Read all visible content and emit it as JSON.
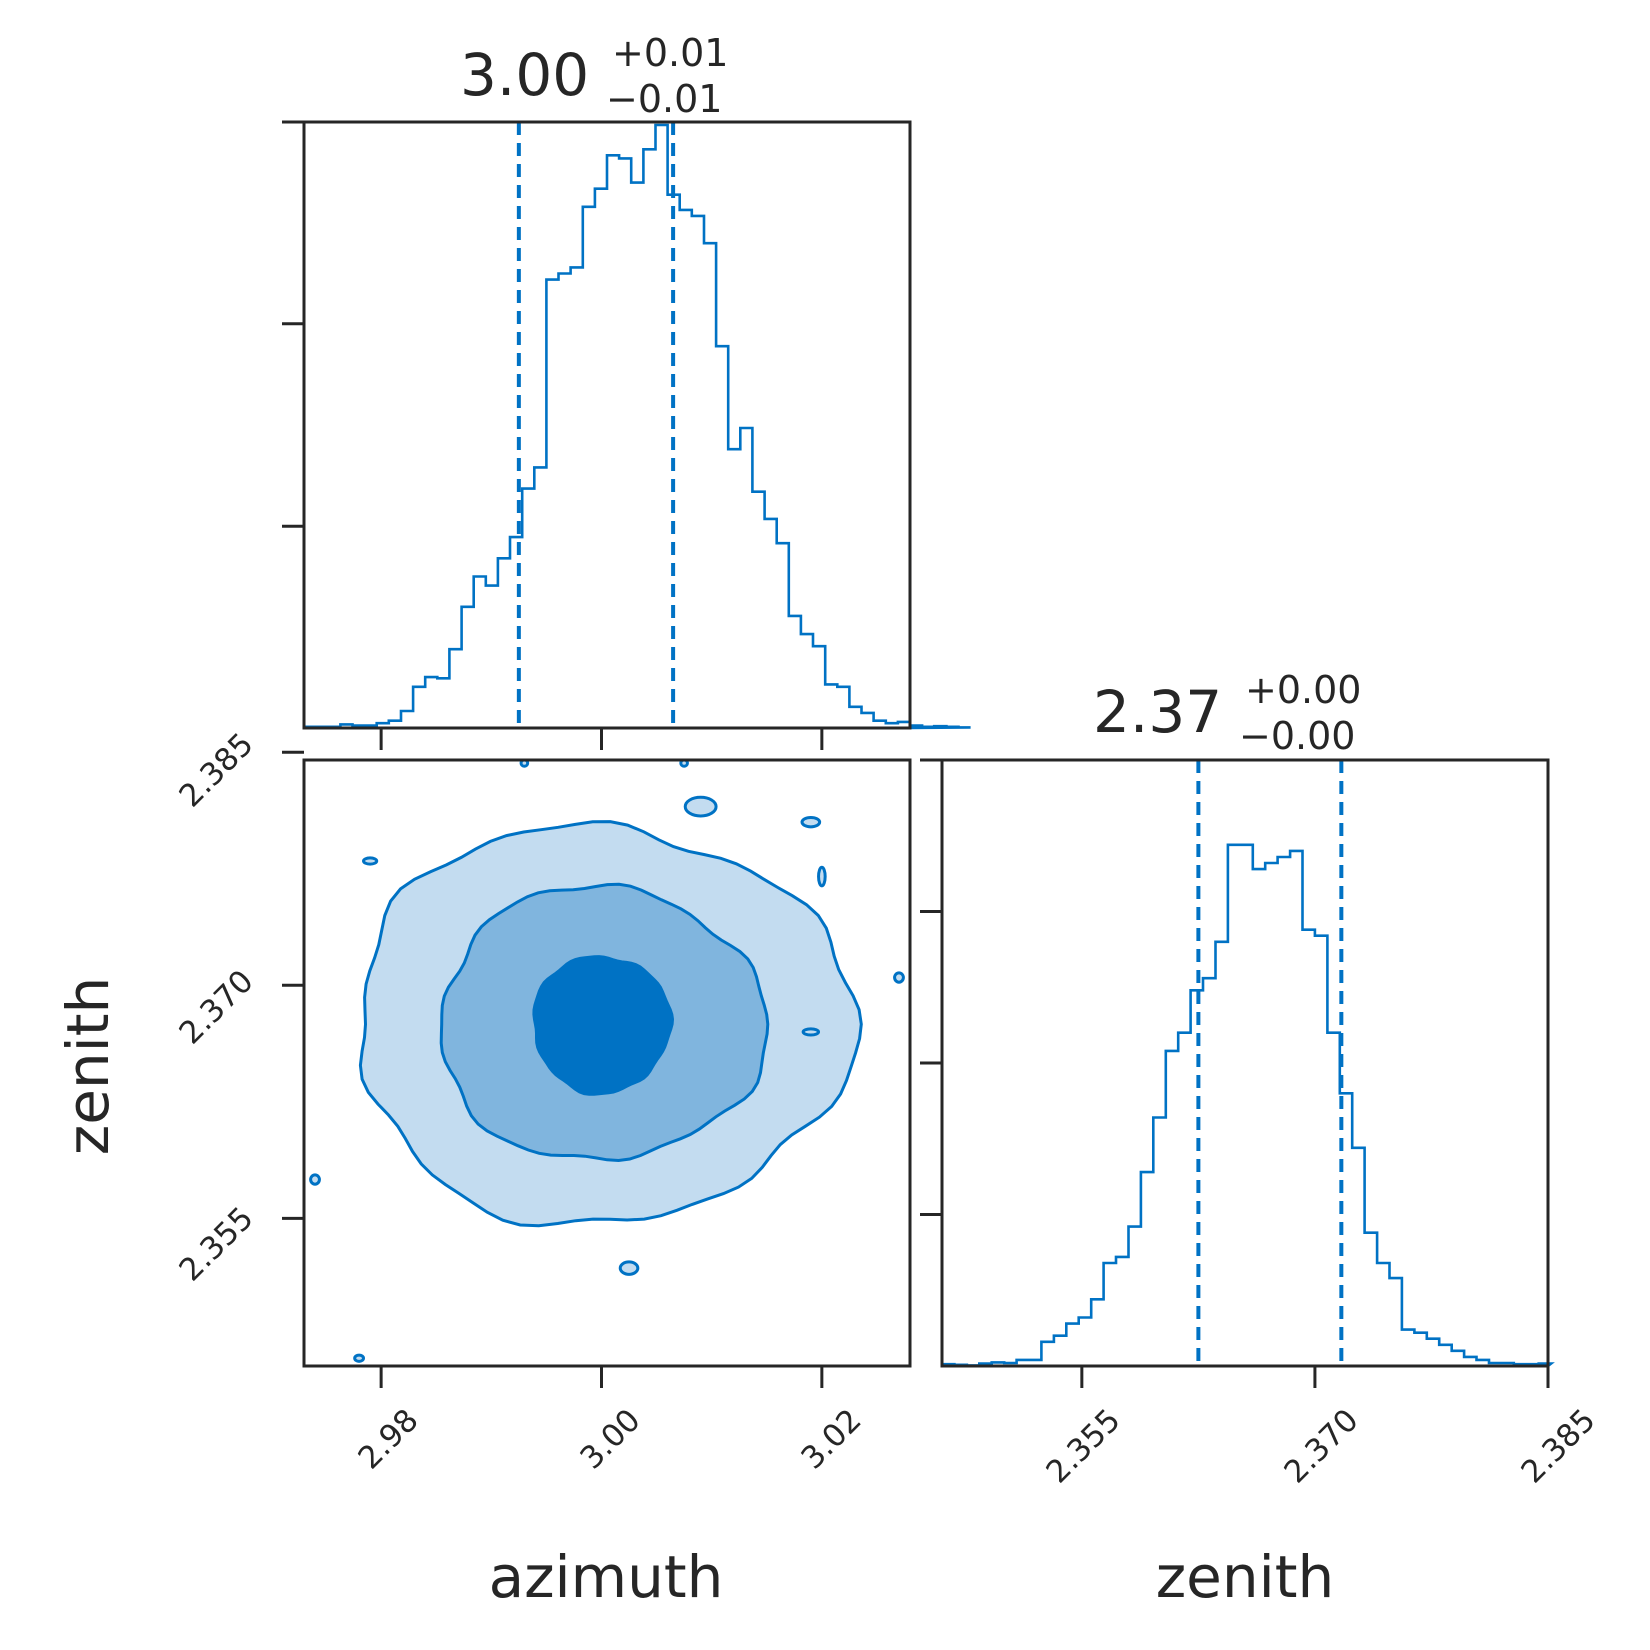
{
  "colors": {
    "main": "#0072c4",
    "band1": "#c3dcf0",
    "band2": "#80b5de",
    "band3": "#0072c4",
    "frame": "#262626"
  },
  "chart_data": [
    {
      "type": "histogram",
      "parameter": "azimuth",
      "title": {
        "value": "3.00",
        "plus": "+0.01",
        "minus": "−0.01"
      },
      "xlim": [
        2.973,
        3.028
      ],
      "ylim": [
        0,
        1
      ],
      "x_ticks": [
        2.98,
        3.0,
        3.02
      ],
      "x_tick_labels": [
        "2.98",
        "3.00",
        "3.02"
      ],
      "y_ticks": [
        0.333,
        0.667,
        1.0
      ],
      "quantile_lines": [
        2.9925,
        3.0065
      ],
      "bin_edges_start": 2.973,
      "bin_width": 0.0011,
      "counts": [
        0.002,
        0.002,
        0.002,
        0.006,
        0.004,
        0.004,
        0.008,
        0.012,
        0.028,
        0.068,
        0.084,
        0.082,
        0.13,
        0.2,
        0.25,
        0.235,
        0.28,
        0.315,
        0.395,
        0.43,
        0.74,
        0.75,
        0.76,
        0.86,
        0.89,
        0.945,
        0.94,
        0.9,
        0.955,
        0.995,
        0.88,
        0.855,
        0.845,
        0.8,
        0.63,
        0.46,
        0.495,
        0.39,
        0.345,
        0.305,
        0.185,
        0.155,
        0.135,
        0.072,
        0.068,
        0.035,
        0.025,
        0.012,
        0.008,
        0.01,
        0.004,
        0.002,
        0.003,
        0.002,
        0.001
      ]
    },
    {
      "type": "contour",
      "xlabel": "azimuth",
      "ylabel": "zenith",
      "xlim": [
        2.973,
        3.028
      ],
      "ylim": [
        2.3455,
        2.3845
      ],
      "x_ticks": [
        2.98,
        3.0,
        3.02
      ],
      "x_tick_labels": [
        "2.98",
        "3.00",
        "3.02"
      ],
      "y_ticks": [
        2.355,
        2.37,
        2.385
      ],
      "y_tick_labels": [
        "2.355",
        "2.370",
        "2.385"
      ],
      "center": [
        3.0,
        2.3675
      ],
      "levels": [
        {
          "rx": 0.0225,
          "ry": 0.0128,
          "fill": "#c3dcf0"
        },
        {
          "rx": 0.0148,
          "ry": 0.0088,
          "fill": "#80b5de"
        },
        {
          "rx": 0.0062,
          "ry": 0.0044,
          "fill": "#0072c4"
        }
      ]
    },
    {
      "type": "histogram",
      "parameter": "zenith",
      "title": {
        "value": "2.37",
        "plus": "+0.00",
        "minus": "−0.00"
      },
      "xlabel": "zenith",
      "xlim": [
        2.346,
        2.385
      ],
      "ylim": [
        0,
        1
      ],
      "x_ticks": [
        2.355,
        2.37,
        2.385
      ],
      "x_tick_labels": [
        "2.355",
        "2.370",
        "2.385"
      ],
      "y_ticks": [
        0.25,
        0.5,
        0.75,
        1.0
      ],
      "quantile_lines": [
        2.3625,
        2.3717
      ],
      "bin_edges_start": 2.346,
      "bin_width": 0.0008,
      "counts": [
        0.003,
        0.002,
        0.001,
        0.004,
        0.006,
        0.005,
        0.01,
        0.01,
        0.04,
        0.05,
        0.07,
        0.08,
        0.11,
        0.17,
        0.18,
        0.23,
        0.32,
        0.41,
        0.52,
        0.55,
        0.62,
        0.64,
        0.7,
        0.86,
        0.86,
        0.82,
        0.83,
        0.84,
        0.85,
        0.72,
        0.71,
        0.55,
        0.45,
        0.36,
        0.22,
        0.17,
        0.145,
        0.06,
        0.055,
        0.045,
        0.035,
        0.025,
        0.015,
        0.01,
        0.005,
        0.005,
        0.003,
        0.003,
        0.004
      ]
    }
  ]
}
